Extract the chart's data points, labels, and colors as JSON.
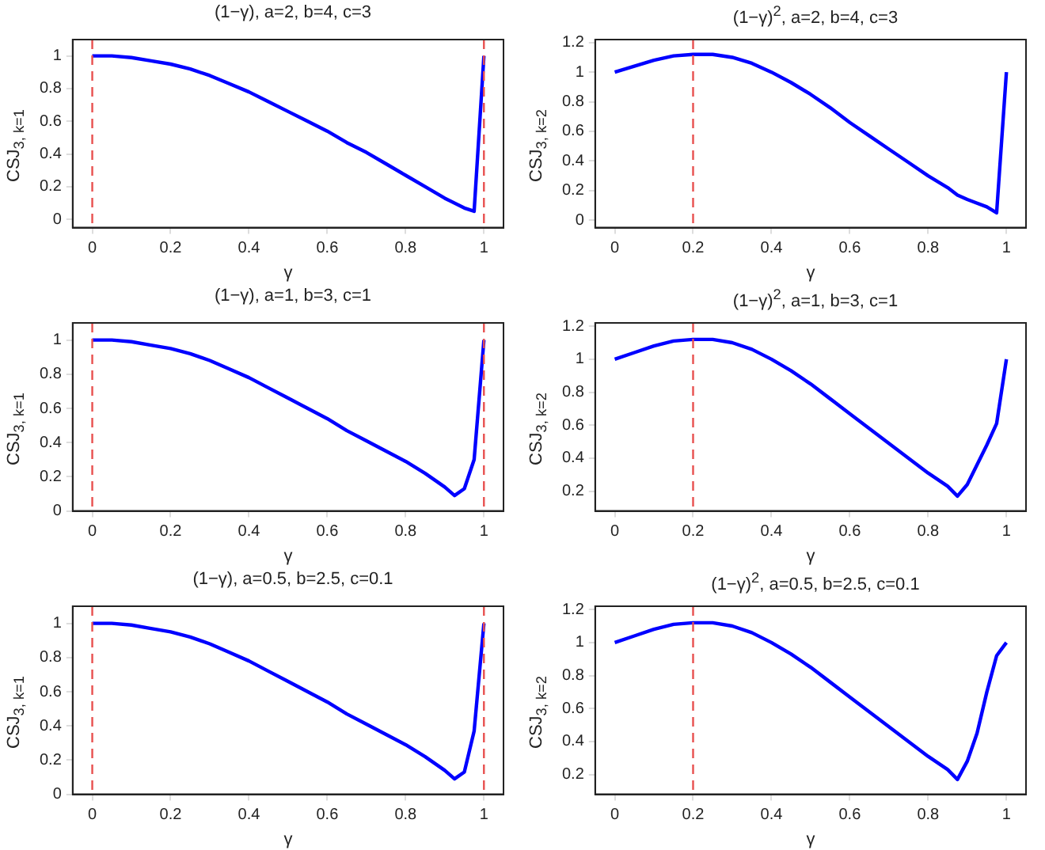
{
  "chart_data": [
    {
      "type": "line",
      "title": "(1−γ), a=2, b=4, c=3",
      "xlabel": "γ",
      "ylabel": "CSJ$_{3, k=1}$",
      "x": [
        0,
        0.05,
        0.1,
        0.15,
        0.2,
        0.25,
        0.3,
        0.35,
        0.4,
        0.45,
        0.5,
        0.55,
        0.6,
        0.65,
        0.7,
        0.75,
        0.8,
        0.85,
        0.9,
        0.95,
        0.975,
        1
      ],
      "series": [
        {
          "color": "#0000ff",
          "values": [
            1,
            1,
            0.99,
            0.97,
            0.95,
            0.92,
            0.88,
            0.83,
            0.78,
            0.72,
            0.66,
            0.6,
            0.54,
            0.47,
            0.41,
            0.34,
            0.27,
            0.2,
            0.13,
            0.07,
            0.05,
            1
          ]
        }
      ],
      "xlim": [
        -0.05,
        1.05
      ],
      "ylim": [
        -0.05,
        1.1
      ],
      "xticks": [
        0,
        0.2,
        0.4,
        0.6,
        0.8,
        1
      ],
      "yticks": [
        0,
        0.2,
        0.4,
        0.6,
        0.8,
        1
      ],
      "grid": false,
      "legend": false,
      "marker": "none",
      "line_style": "solid",
      "ref_lines": [
        {
          "axis": "x",
          "value": 0,
          "color": "#e8504f",
          "line_style": "dashed"
        },
        {
          "axis": "x",
          "value": 1,
          "color": "#e8504f",
          "line_style": "dashed"
        }
      ]
    },
    {
      "type": "line",
      "title": "(1−γ)$^{2}$, a=2, b=4, c=3",
      "xlabel": "γ",
      "ylabel": "CSJ$_{3, k=2}$",
      "x": [
        0,
        0.05,
        0.1,
        0.15,
        0.2,
        0.25,
        0.3,
        0.35,
        0.4,
        0.45,
        0.5,
        0.55,
        0.6,
        0.65,
        0.7,
        0.75,
        0.8,
        0.85,
        0.875,
        0.9,
        0.95,
        0.975,
        1
      ],
      "series": [
        {
          "color": "#0000ff",
          "values": [
            1,
            1.04,
            1.08,
            1.11,
            1.12,
            1.12,
            1.1,
            1.06,
            1,
            0.93,
            0.85,
            0.76,
            0.66,
            0.57,
            0.48,
            0.39,
            0.3,
            0.22,
            0.17,
            0.14,
            0.09,
            0.05,
            1
          ]
        }
      ],
      "xlim": [
        -0.05,
        1.05
      ],
      "ylim": [
        -0.05,
        1.22
      ],
      "xticks": [
        0,
        0.2,
        0.4,
        0.6,
        0.8,
        1
      ],
      "yticks": [
        0,
        0.2,
        0.4,
        0.6,
        0.8,
        1,
        1.2
      ],
      "grid": false,
      "legend": false,
      "marker": "none",
      "line_style": "solid",
      "ref_lines": [
        {
          "axis": "x",
          "value": 0.2,
          "color": "#e8504f",
          "line_style": "dashed"
        }
      ]
    },
    {
      "type": "line",
      "title": "(1−γ), a=1, b=3, c=1",
      "xlabel": "γ",
      "ylabel": "CSJ$_{3, k=1}$",
      "x": [
        0,
        0.05,
        0.1,
        0.15,
        0.2,
        0.25,
        0.3,
        0.35,
        0.4,
        0.45,
        0.5,
        0.55,
        0.6,
        0.65,
        0.7,
        0.75,
        0.8,
        0.85,
        0.9,
        0.925,
        0.95,
        0.975,
        1
      ],
      "series": [
        {
          "color": "#0000ff",
          "values": [
            1,
            1,
            0.99,
            0.97,
            0.95,
            0.92,
            0.88,
            0.83,
            0.78,
            0.72,
            0.66,
            0.6,
            0.54,
            0.47,
            0.41,
            0.35,
            0.29,
            0.22,
            0.14,
            0.09,
            0.13,
            0.3,
            1
          ]
        }
      ],
      "xlim": [
        -0.05,
        1.05
      ],
      "ylim": [
        0,
        1.1
      ],
      "xticks": [
        0,
        0.2,
        0.4,
        0.6,
        0.8,
        1
      ],
      "yticks": [
        0,
        0.2,
        0.4,
        0.6,
        0.8,
        1
      ],
      "grid": false,
      "legend": false,
      "marker": "none",
      "line_style": "solid",
      "ref_lines": [
        {
          "axis": "x",
          "value": 0,
          "color": "#e8504f",
          "line_style": "dashed"
        },
        {
          "axis": "x",
          "value": 1,
          "color": "#e8504f",
          "line_style": "dashed"
        }
      ]
    },
    {
      "type": "line",
      "title": "(1−γ)$^{2}$, a=1, b=3, c=1",
      "xlabel": "γ",
      "ylabel": "CSJ$_{3, k=2}$",
      "x": [
        0,
        0.05,
        0.1,
        0.15,
        0.2,
        0.25,
        0.3,
        0.35,
        0.4,
        0.45,
        0.5,
        0.55,
        0.6,
        0.65,
        0.7,
        0.75,
        0.8,
        0.85,
        0.875,
        0.9,
        0.925,
        0.95,
        0.975,
        1
      ],
      "series": [
        {
          "color": "#0000ff",
          "values": [
            1,
            1.04,
            1.08,
            1.11,
            1.12,
            1.12,
            1.1,
            1.06,
            1,
            0.93,
            0.85,
            0.76,
            0.67,
            0.58,
            0.49,
            0.4,
            0.31,
            0.23,
            0.17,
            0.24,
            0.36,
            0.48,
            0.61,
            1
          ]
        }
      ],
      "xlim": [
        -0.05,
        1.05
      ],
      "ylim": [
        0.08,
        1.22
      ],
      "xticks": [
        0,
        0.2,
        0.4,
        0.6,
        0.8,
        1
      ],
      "yticks": [
        0.2,
        0.4,
        0.6,
        0.8,
        1,
        1.2
      ],
      "grid": false,
      "legend": false,
      "marker": "none",
      "line_style": "solid",
      "ref_lines": [
        {
          "axis": "x",
          "value": 0.2,
          "color": "#e8504f",
          "line_style": "dashed"
        }
      ]
    },
    {
      "type": "line",
      "title": "(1−γ), a=0.5, b=2.5, c=0.1",
      "xlabel": "γ",
      "ylabel": "CSJ$_{3, k=1}$",
      "x": [
        0,
        0.05,
        0.1,
        0.15,
        0.2,
        0.25,
        0.3,
        0.35,
        0.4,
        0.45,
        0.5,
        0.55,
        0.6,
        0.65,
        0.7,
        0.75,
        0.8,
        0.85,
        0.9,
        0.925,
        0.95,
        0.975,
        1
      ],
      "series": [
        {
          "color": "#0000ff",
          "values": [
            1,
            1,
            0.99,
            0.97,
            0.95,
            0.92,
            0.88,
            0.83,
            0.78,
            0.72,
            0.66,
            0.6,
            0.54,
            0.47,
            0.41,
            0.35,
            0.29,
            0.22,
            0.14,
            0.09,
            0.13,
            0.37,
            1
          ]
        }
      ],
      "xlim": [
        -0.05,
        1.05
      ],
      "ylim": [
        0,
        1.1
      ],
      "xticks": [
        0,
        0.2,
        0.4,
        0.6,
        0.8,
        1
      ],
      "yticks": [
        0,
        0.2,
        0.4,
        0.6,
        0.8,
        1
      ],
      "grid": false,
      "legend": false,
      "marker": "none",
      "line_style": "solid",
      "ref_lines": [
        {
          "axis": "x",
          "value": 0,
          "color": "#e8504f",
          "line_style": "dashed"
        },
        {
          "axis": "x",
          "value": 1,
          "color": "#e8504f",
          "line_style": "dashed"
        }
      ]
    },
    {
      "type": "line",
      "title": "(1−γ)$^{2}$, a=0.5, b=2.5, c=0.1",
      "xlabel": "γ",
      "ylabel": "CSJ$_{3, k=2}$",
      "x": [
        0,
        0.05,
        0.1,
        0.15,
        0.2,
        0.25,
        0.3,
        0.35,
        0.4,
        0.45,
        0.5,
        0.55,
        0.6,
        0.65,
        0.7,
        0.75,
        0.8,
        0.85,
        0.875,
        0.9,
        0.925,
        0.95,
        0.975,
        1
      ],
      "series": [
        {
          "color": "#0000ff",
          "values": [
            1,
            1.04,
            1.08,
            1.11,
            1.12,
            1.12,
            1.1,
            1.06,
            1,
            0.93,
            0.85,
            0.76,
            0.67,
            0.58,
            0.49,
            0.4,
            0.31,
            0.23,
            0.17,
            0.28,
            0.45,
            0.7,
            0.92,
            1
          ]
        }
      ],
      "xlim": [
        -0.05,
        1.05
      ],
      "ylim": [
        0.08,
        1.22
      ],
      "xticks": [
        0,
        0.2,
        0.4,
        0.6,
        0.8,
        1
      ],
      "yticks": [
        0.2,
        0.4,
        0.6,
        0.8,
        1,
        1.2
      ],
      "grid": false,
      "legend": false,
      "marker": "none",
      "line_style": "solid",
      "ref_lines": [
        {
          "axis": "x",
          "value": 0.2,
          "color": "#e8504f",
          "line_style": "dashed"
        }
      ]
    }
  ]
}
